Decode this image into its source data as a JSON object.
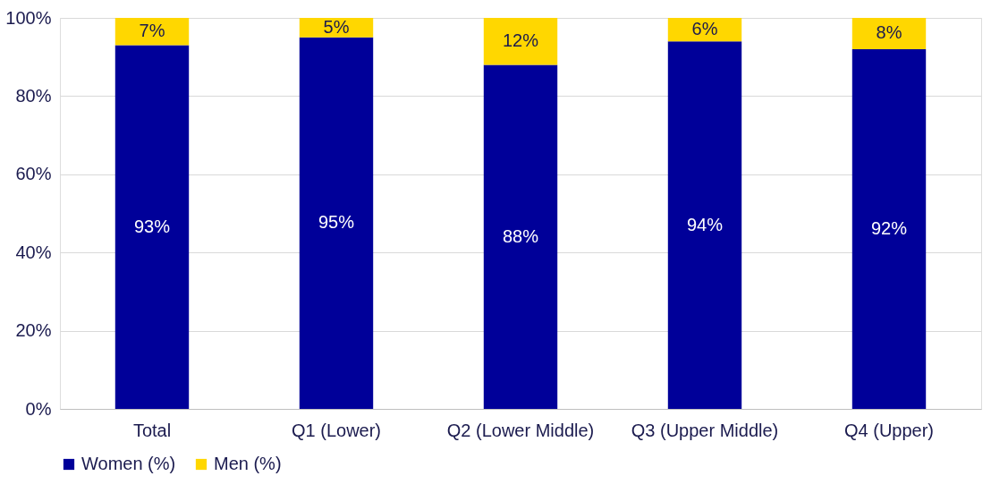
{
  "chart_data": {
    "type": "bar",
    "stacked": true,
    "categories": [
      "Total",
      "Q1 (Lower)",
      "Q2 (Lower Middle)",
      "Q3 (Upper Middle)",
      "Q4 (Upper)"
    ],
    "series": [
      {
        "name": "Women (%)",
        "color": "#000099",
        "values": [
          93,
          95,
          88,
          94,
          92
        ],
        "value_labels": [
          "93%",
          "95%",
          "88%",
          "94%",
          "92%"
        ]
      },
      {
        "name": "Men (%)",
        "color": "#ffd700",
        "values": [
          7,
          5,
          12,
          6,
          8
        ],
        "value_labels": [
          "7%",
          "5%",
          "12%",
          "6%",
          "8%"
        ]
      }
    ],
    "ylim": [
      0,
      100
    ],
    "yticks": [
      {
        "value": 0,
        "label": "0%"
      },
      {
        "value": 20,
        "label": "20%"
      },
      {
        "value": 40,
        "label": "40%"
      },
      {
        "value": 60,
        "label": "60%"
      },
      {
        "value": 80,
        "label": "80%"
      },
      {
        "value": 100,
        "label": "100%"
      }
    ],
    "grid": "y",
    "legend": "bottom"
  }
}
